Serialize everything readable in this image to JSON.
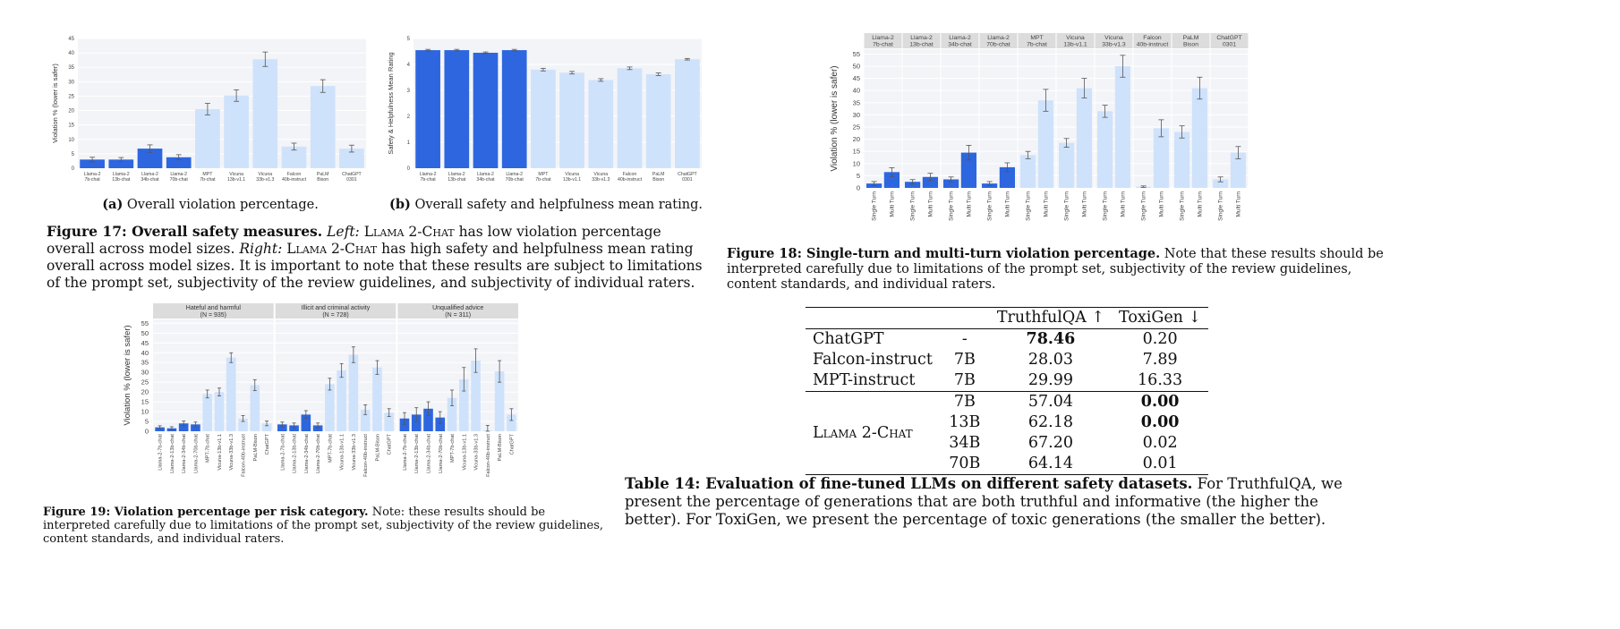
{
  "fig17": {
    "a": {
      "ylabel": "Violation % (lower is safer)",
      "yticks": [
        0,
        5,
        10,
        15,
        20,
        25,
        30,
        35,
        40,
        45
      ],
      "ylim": [
        0,
        45
      ],
      "categories": [
        "Llama-2\n7b-chat",
        "Llama-2\n13b-chat",
        "Llama-2\n34b-chat",
        "Llama-2\n70b-chat",
        "MPT\n7b-chat",
        "Vicuna\n13b-v1.1",
        "Vicuna\n33b-v1.3",
        "Falcon\n40b-instruct",
        "PaLM\nBison",
        "ChatGPT\n0301"
      ],
      "values": [
        3.0,
        3.0,
        6.8,
        3.8,
        20.5,
        25.2,
        37.8,
        7.5,
        28.5,
        6.8
      ],
      "errors": [
        0.8,
        0.7,
        1.3,
        0.9,
        2.0,
        2.0,
        2.5,
        1.2,
        2.2,
        1.2
      ],
      "caption_label": "(a)",
      "caption": "Overall violation percentage."
    },
    "b": {
      "ylabel": "Safety & Helpfulness Mean Rating",
      "yticks": [
        0,
        1,
        2,
        3,
        4,
        5
      ],
      "ylim": [
        0,
        5
      ],
      "categories": [
        "Llama-2\n7b-chat",
        "Llama-2\n13b-chat",
        "Llama-2\n34b-chat",
        "Llama-2\n70b-chat",
        "MPT\n7b-chat",
        "Vicuna\n13b-v1.1",
        "Vicuna\n33b-v1.3",
        "Falcon\n40b-instruct",
        "PaLM\nBison",
        "ChatGPT\n0301"
      ],
      "values": [
        4.55,
        4.55,
        4.45,
        4.55,
        3.8,
        3.68,
        3.4,
        3.85,
        3.62,
        4.2
      ],
      "errors": [
        0.03,
        0.03,
        0.03,
        0.03,
        0.05,
        0.05,
        0.05,
        0.05,
        0.05,
        0.03
      ],
      "caption_label": "(b)",
      "caption": "Overall safety and helpfulness mean rating."
    },
    "caption_title": "Figure 17: Overall safety measures.",
    "caption_left": "Left:",
    "caption_sc1": "Llama 2-Chat",
    "caption_mid": "has low violation percentage overall across model sizes.",
    "caption_right": "Right:",
    "caption_sc2": "Llama 2-Chat",
    "caption_rest": "has high safety and helpfulness mean rating overall across model sizes. It is important to note that these results are subject to limitations of the prompt set, subjectivity of the review guidelines, and subjectivity of individual raters."
  },
  "fig18": {
    "ylabel": "Violation % (lower is safer)",
    "yticks": [
      0,
      5,
      10,
      15,
      20,
      25,
      30,
      35,
      40,
      45,
      50,
      55
    ],
    "ylim": [
      0,
      57
    ],
    "groups": [
      "Llama-2\n7b-chat",
      "Llama-2\n13b-chat",
      "Llama-2\n34b-chat",
      "Llama-2\n70b-chat",
      "MPT\n7b-chat",
      "Vicuna\n13b-v1.1",
      "Vicuna\n33b-v1.3",
      "Falcon\n40b-instruct",
      "PaLM\nBison",
      "ChatGPT\n0301"
    ],
    "xticks": [
      "Single Turn",
      "Multi Turn"
    ],
    "single": [
      1.8,
      2.5,
      3.5,
      1.8,
      13.5,
      18.5,
      31.5,
      0.5,
      23.0,
      3.5
    ],
    "multi": [
      6.5,
      4.5,
      14.5,
      8.5,
      36.0,
      41.0,
      50.0,
      24.5,
      41.0,
      14.5
    ],
    "single_err": [
      0.8,
      0.9,
      1.0,
      0.8,
      1.5,
      1.8,
      2.5,
      0.3,
      2.5,
      1.0
    ],
    "multi_err": [
      1.8,
      1.5,
      3.0,
      1.8,
      4.5,
      4.0,
      4.5,
      3.5,
      4.5,
      2.5
    ],
    "caption_title": "Figure 18: Single-turn and multi-turn violation percentage.",
    "caption_rest": "Note that these results should be interpreted carefully due to limitations of the prompt set, subjectivity of the review guidelines, content standards, and individual raters."
  },
  "fig19": {
    "ylabel": "Violation % (lower is safer)",
    "yticks": [
      0,
      5,
      10,
      15,
      20,
      25,
      30,
      35,
      40,
      45,
      50,
      55
    ],
    "ylim": [
      0,
      57
    ],
    "panels": [
      {
        "title": "Hateful and harmful",
        "n": "(N = 935)"
      },
      {
        "title": "Illicit and criminal activity",
        "n": "(N = 728)"
      },
      {
        "title": "Unqualified advice",
        "n": "(N = 311)"
      }
    ],
    "categories": [
      "Llama-2-7b-chat",
      "Llama-2-13b-chat",
      "Llama-2-34b-chat",
      "Llama-2-70b-chat",
      "MPT-7b-chat",
      "Vicuna-13b-v1.1",
      "Vicuna-33b-v1.3",
      "Falcon-40b-instruct",
      "PaLM-Bison",
      "ChatGPT"
    ],
    "values": [
      [
        2.0,
        1.5,
        4.0,
        3.5,
        19.0,
        20.0,
        37.5,
        6.5,
        23.5,
        4.0
      ],
      [
        3.5,
        3.0,
        8.5,
        3.0,
        24.0,
        31.0,
        39.0,
        11.0,
        32.5,
        9.5
      ],
      [
        6.5,
        8.5,
        11.5,
        7.0,
        17.0,
        26.5,
        36.0,
        0.5,
        30.5,
        8.5
      ]
    ],
    "errors": [
      [
        0.8,
        0.8,
        1.2,
        1.2,
        2.0,
        2.0,
        2.5,
        1.5,
        2.8,
        1.2
      ],
      [
        1.2,
        1.2,
        2.0,
        1.2,
        3.0,
        3.5,
        4.0,
        2.5,
        3.5,
        2.0
      ],
      [
        3.0,
        3.5,
        3.5,
        3.0,
        4.0,
        6.0,
        6.0,
        2.5,
        5.5,
        3.0
      ]
    ],
    "caption_title": "Figure 19: Violation percentage per risk category.",
    "caption_rest": "Note: these results should be interpreted carefully due to limitations of the prompt set, subjectivity of the review guidelines, content standards, and individual raters."
  },
  "table14": {
    "headers": [
      "",
      "",
      "TruthfulQA ↑",
      "ToxiGen ↓"
    ],
    "rows": [
      {
        "model": "ChatGPT",
        "size": "-",
        "tqa": "78.46",
        "tox": "0.20",
        "tqa_bold": true,
        "tox_bold": false
      },
      {
        "model": "Falcon-instruct",
        "size": "7B",
        "tqa": "28.03",
        "tox": "7.89",
        "tqa_bold": false,
        "tox_bold": false
      },
      {
        "model": "MPT-instruct",
        "size": "7B",
        "tqa": "29.99",
        "tox": "16.33",
        "tqa_bold": false,
        "tox_bold": false
      }
    ],
    "llama_label": "Llama 2-Chat",
    "llama_rows": [
      {
        "size": "7B",
        "tqa": "57.04",
        "tox": "0.00",
        "tox_bold": true
      },
      {
        "size": "13B",
        "tqa": "62.18",
        "tox": "0.00",
        "tox_bold": true
      },
      {
        "size": "34B",
        "tqa": "67.20",
        "tox": "0.02",
        "tox_bold": false
      },
      {
        "size": "70B",
        "tqa": "64.14",
        "tox": "0.01",
        "tox_bold": false
      }
    ],
    "caption_title": "Table 14: Evaluation of fine-tuned LLMs on different safety datasets.",
    "caption_rest": "For TruthfulQA, we present the percentage of generations that are both truthful and informative (the higher the better). For ToxiGen, we present the percentage of toxic generations (the smaller the better)."
  },
  "colors": {
    "dark_bar": "#2d66df",
    "light_bar": "#cfe2fb",
    "plot_bg": "#f3f4f8",
    "header_bg": "#dcdcdc",
    "grid": "#ffffff",
    "error": "#555555"
  }
}
